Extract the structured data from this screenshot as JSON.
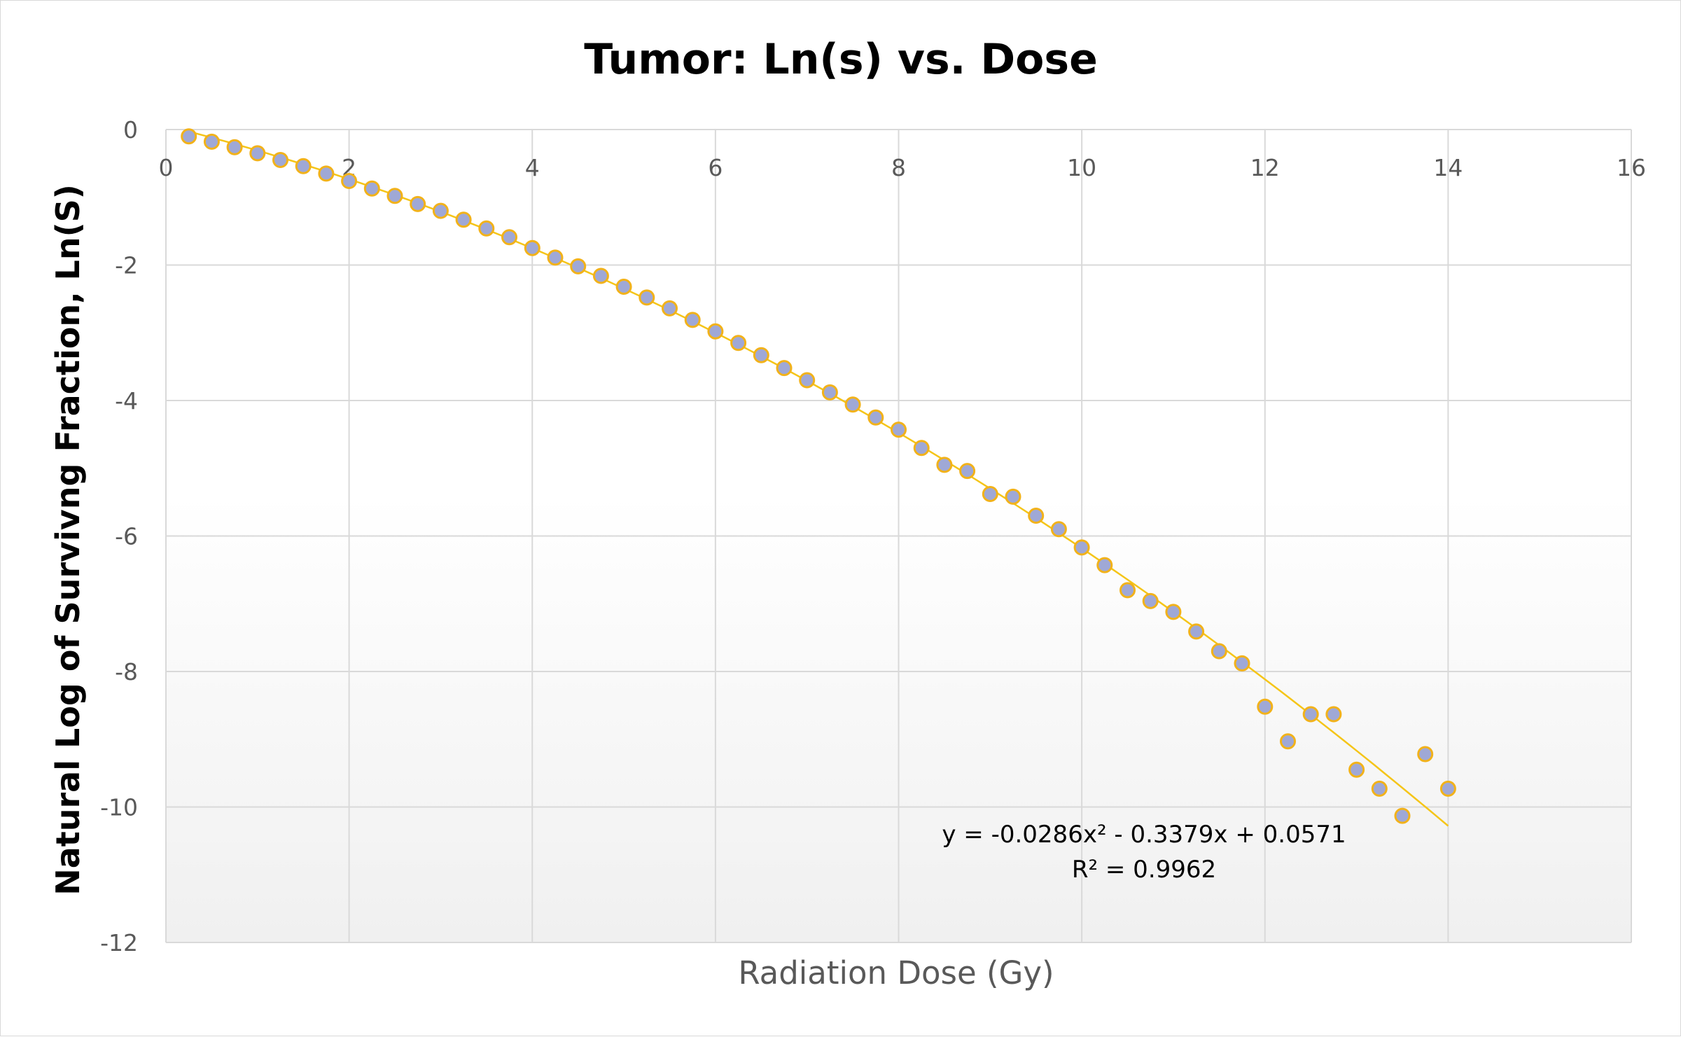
{
  "chart_data": {
    "type": "scatter",
    "title": "Tumor: Ln(s) vs. Dose",
    "xlabel": "Radiation Dose (Gy)",
    "ylabel": "Natural Log of Survivng Fraction, Ln(S)",
    "xlim": [
      0,
      16
    ],
    "ylim": [
      -12,
      0
    ],
    "x_ticks": [
      "0",
      "2",
      "4",
      "6",
      "8",
      "10",
      "12",
      "14",
      "16"
    ],
    "y_ticks": [
      "0",
      "-2",
      "-4",
      "-6",
      "-8",
      "-10",
      "-12"
    ],
    "grid": true,
    "legend": "none",
    "series": [
      {
        "x": [
          0.25,
          0.5,
          0.75,
          1.0,
          1.25,
          1.5,
          1.75,
          2.0,
          2.25,
          2.5,
          2.75,
          3.0,
          3.25,
          3.5,
          3.75,
          4.0,
          4.25,
          4.5,
          4.75,
          5.0,
          5.25,
          5.5,
          5.75,
          6.0,
          6.25,
          6.5,
          6.75,
          7.0,
          7.25,
          7.5,
          7.75,
          8.0,
          8.25,
          8.5,
          8.75,
          9.0,
          9.25,
          9.5,
          9.75,
          10.0,
          10.25,
          10.5,
          10.75,
          11.0,
          11.25,
          11.5,
          11.75,
          12.0,
          12.25,
          12.5,
          12.75,
          13.0,
          13.25,
          13.5,
          13.75,
          14.0
        ],
        "y": [
          -0.1,
          -0.18,
          -0.26,
          -0.35,
          -0.45,
          -0.54,
          -0.65,
          -0.76,
          -0.87,
          -0.98,
          -1.1,
          -1.2,
          -1.33,
          -1.46,
          -1.59,
          -1.75,
          -1.89,
          -2.02,
          -2.16,
          -2.32,
          -2.48,
          -2.64,
          -2.81,
          -2.98,
          -3.15,
          -3.33,
          -3.52,
          -3.7,
          -3.88,
          -4.06,
          -4.25,
          -4.43,
          -4.7,
          -4.95,
          -5.04,
          -5.38,
          -5.42,
          -5.7,
          -5.9,
          -6.17,
          -6.43,
          -6.8,
          -6.96,
          -7.12,
          -7.41,
          -7.7,
          -7.88,
          -8.52,
          -9.03,
          -8.63,
          -8.63,
          -9.45,
          -9.73,
          -10.13,
          -9.22,
          -9.73
        ]
      }
    ],
    "trendline": {
      "type": "polynomial",
      "coefficients": [
        -0.0286,
        -0.3379,
        0.0571
      ],
      "x_range": [
        0.25,
        14
      ],
      "equation": "y = -0.0286x² - 0.3379x + 0.0571",
      "r_squared": "R² = 0.9962"
    },
    "colors": {
      "marker_fill": "#9fa8d6",
      "marker_stroke": "#f2b21a",
      "trendline": "#f5c518",
      "grid": "#d9d9d9",
      "plot_gradient_bottom": "#f0f0f0"
    }
  }
}
